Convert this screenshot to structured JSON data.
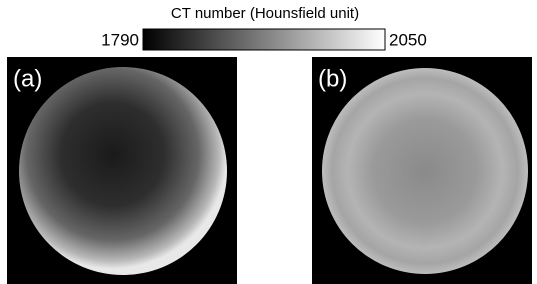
{
  "colorbar": {
    "label": "CT number (Hounsfield unit)",
    "min": 1790,
    "max": 2050
  },
  "panels": [
    {
      "label": "(a)"
    },
    {
      "label": "(b)"
    }
  ]
}
